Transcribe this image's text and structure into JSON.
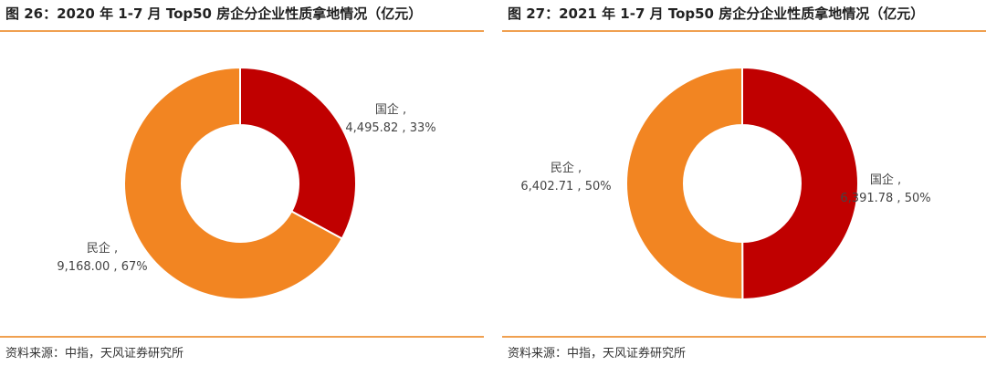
{
  "charts": [
    {
      "title": "图 26：2020 年 1-7 月 Top50 房企分企业性质拿地情况（亿元）",
      "source": "资料来源：中指，天风证券研究所",
      "chart_data": {
        "type": "pie",
        "title": "图 26：2020 年 1-7 月 Top50 房企分企业性质拿地情况（亿元）",
        "categories": [
          "国企",
          "民企"
        ],
        "values": [
          4495.82,
          9168.0
        ],
        "percents": [
          33,
          67
        ],
        "colors": [
          "#c00000",
          "#f28522"
        ],
        "labels": [
          {
            "line1": "国企 ,",
            "line2": "4,495.82 , 33%"
          },
          {
            "line1": "民企 ,",
            "line2": "9,168.00 , 67%"
          }
        ]
      }
    },
    {
      "title": "图 27：2021 年 1-7 月 Top50 房企分企业性质拿地情况（亿元）",
      "source": "资料来源：中指，天风证券研究所",
      "chart_data": {
        "type": "pie",
        "title": "图 27：2021 年 1-7 月 Top50 房企分企业性质拿地情况（亿元）",
        "categories": [
          "国企",
          "民企"
        ],
        "values": [
          6391.78,
          6402.71
        ],
        "percents": [
          50,
          50
        ],
        "colors": [
          "#c00000",
          "#f28522"
        ],
        "labels": [
          {
            "line1": "国企 ,",
            "line2": "6,391.78 , 50%"
          },
          {
            "line1": "民企 ,",
            "line2": "6,402.71 , 50%"
          }
        ]
      }
    }
  ]
}
